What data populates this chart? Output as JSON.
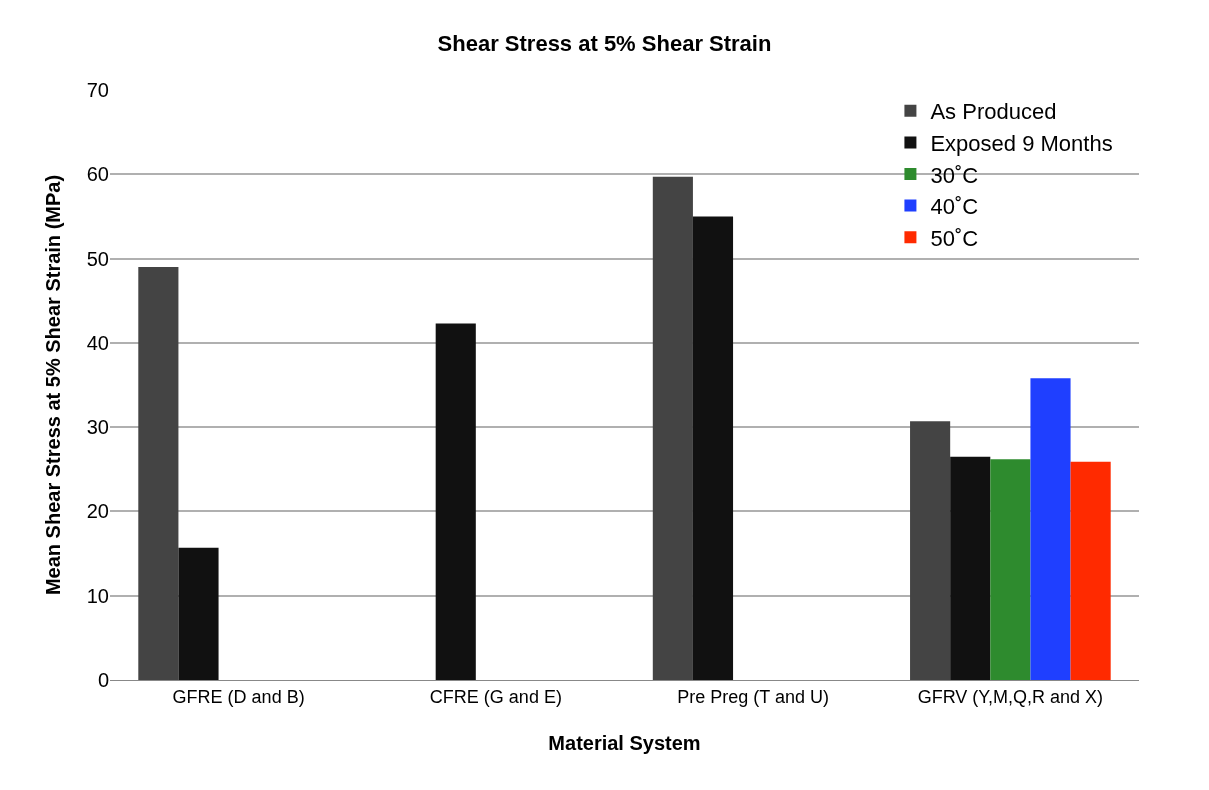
{
  "chart_data": {
    "type": "bar",
    "title": "Shear Stress at 5% Shear Strain",
    "xlabel": "Material System",
    "ylabel": "Mean Shear Stress at 5% Shear Strain (MPa)",
    "categories": [
      "GFRE (D and B)",
      "CFRE (G and E)",
      "Pre Preg (T and U)",
      "GFRV (Y,M,Q,R and X)"
    ],
    "series": [
      {
        "name": "As Produced",
        "color": "#444444",
        "values": [
          49,
          null,
          59.7,
          30.7
        ]
      },
      {
        "name": "Exposed 9 Months",
        "color": "#111111",
        "values": [
          15.7,
          42.3,
          55,
          26.5
        ]
      },
      {
        "name": "30˚C",
        "color": "#2e8b2e",
        "values": [
          null,
          null,
          null,
          26.2
        ]
      },
      {
        "name": "40˚C",
        "color": "#1f3fff",
        "values": [
          null,
          null,
          null,
          35.8
        ]
      },
      {
        "name": "50˚C",
        "color": "#ff2a00",
        "values": [
          null,
          null,
          null,
          25.9
        ]
      }
    ],
    "ylim": [
      0,
      70
    ],
    "yticks": [
      0,
      10,
      20,
      30,
      40,
      50,
      60,
      70
    ],
    "grid": "y",
    "legend": "top right"
  }
}
